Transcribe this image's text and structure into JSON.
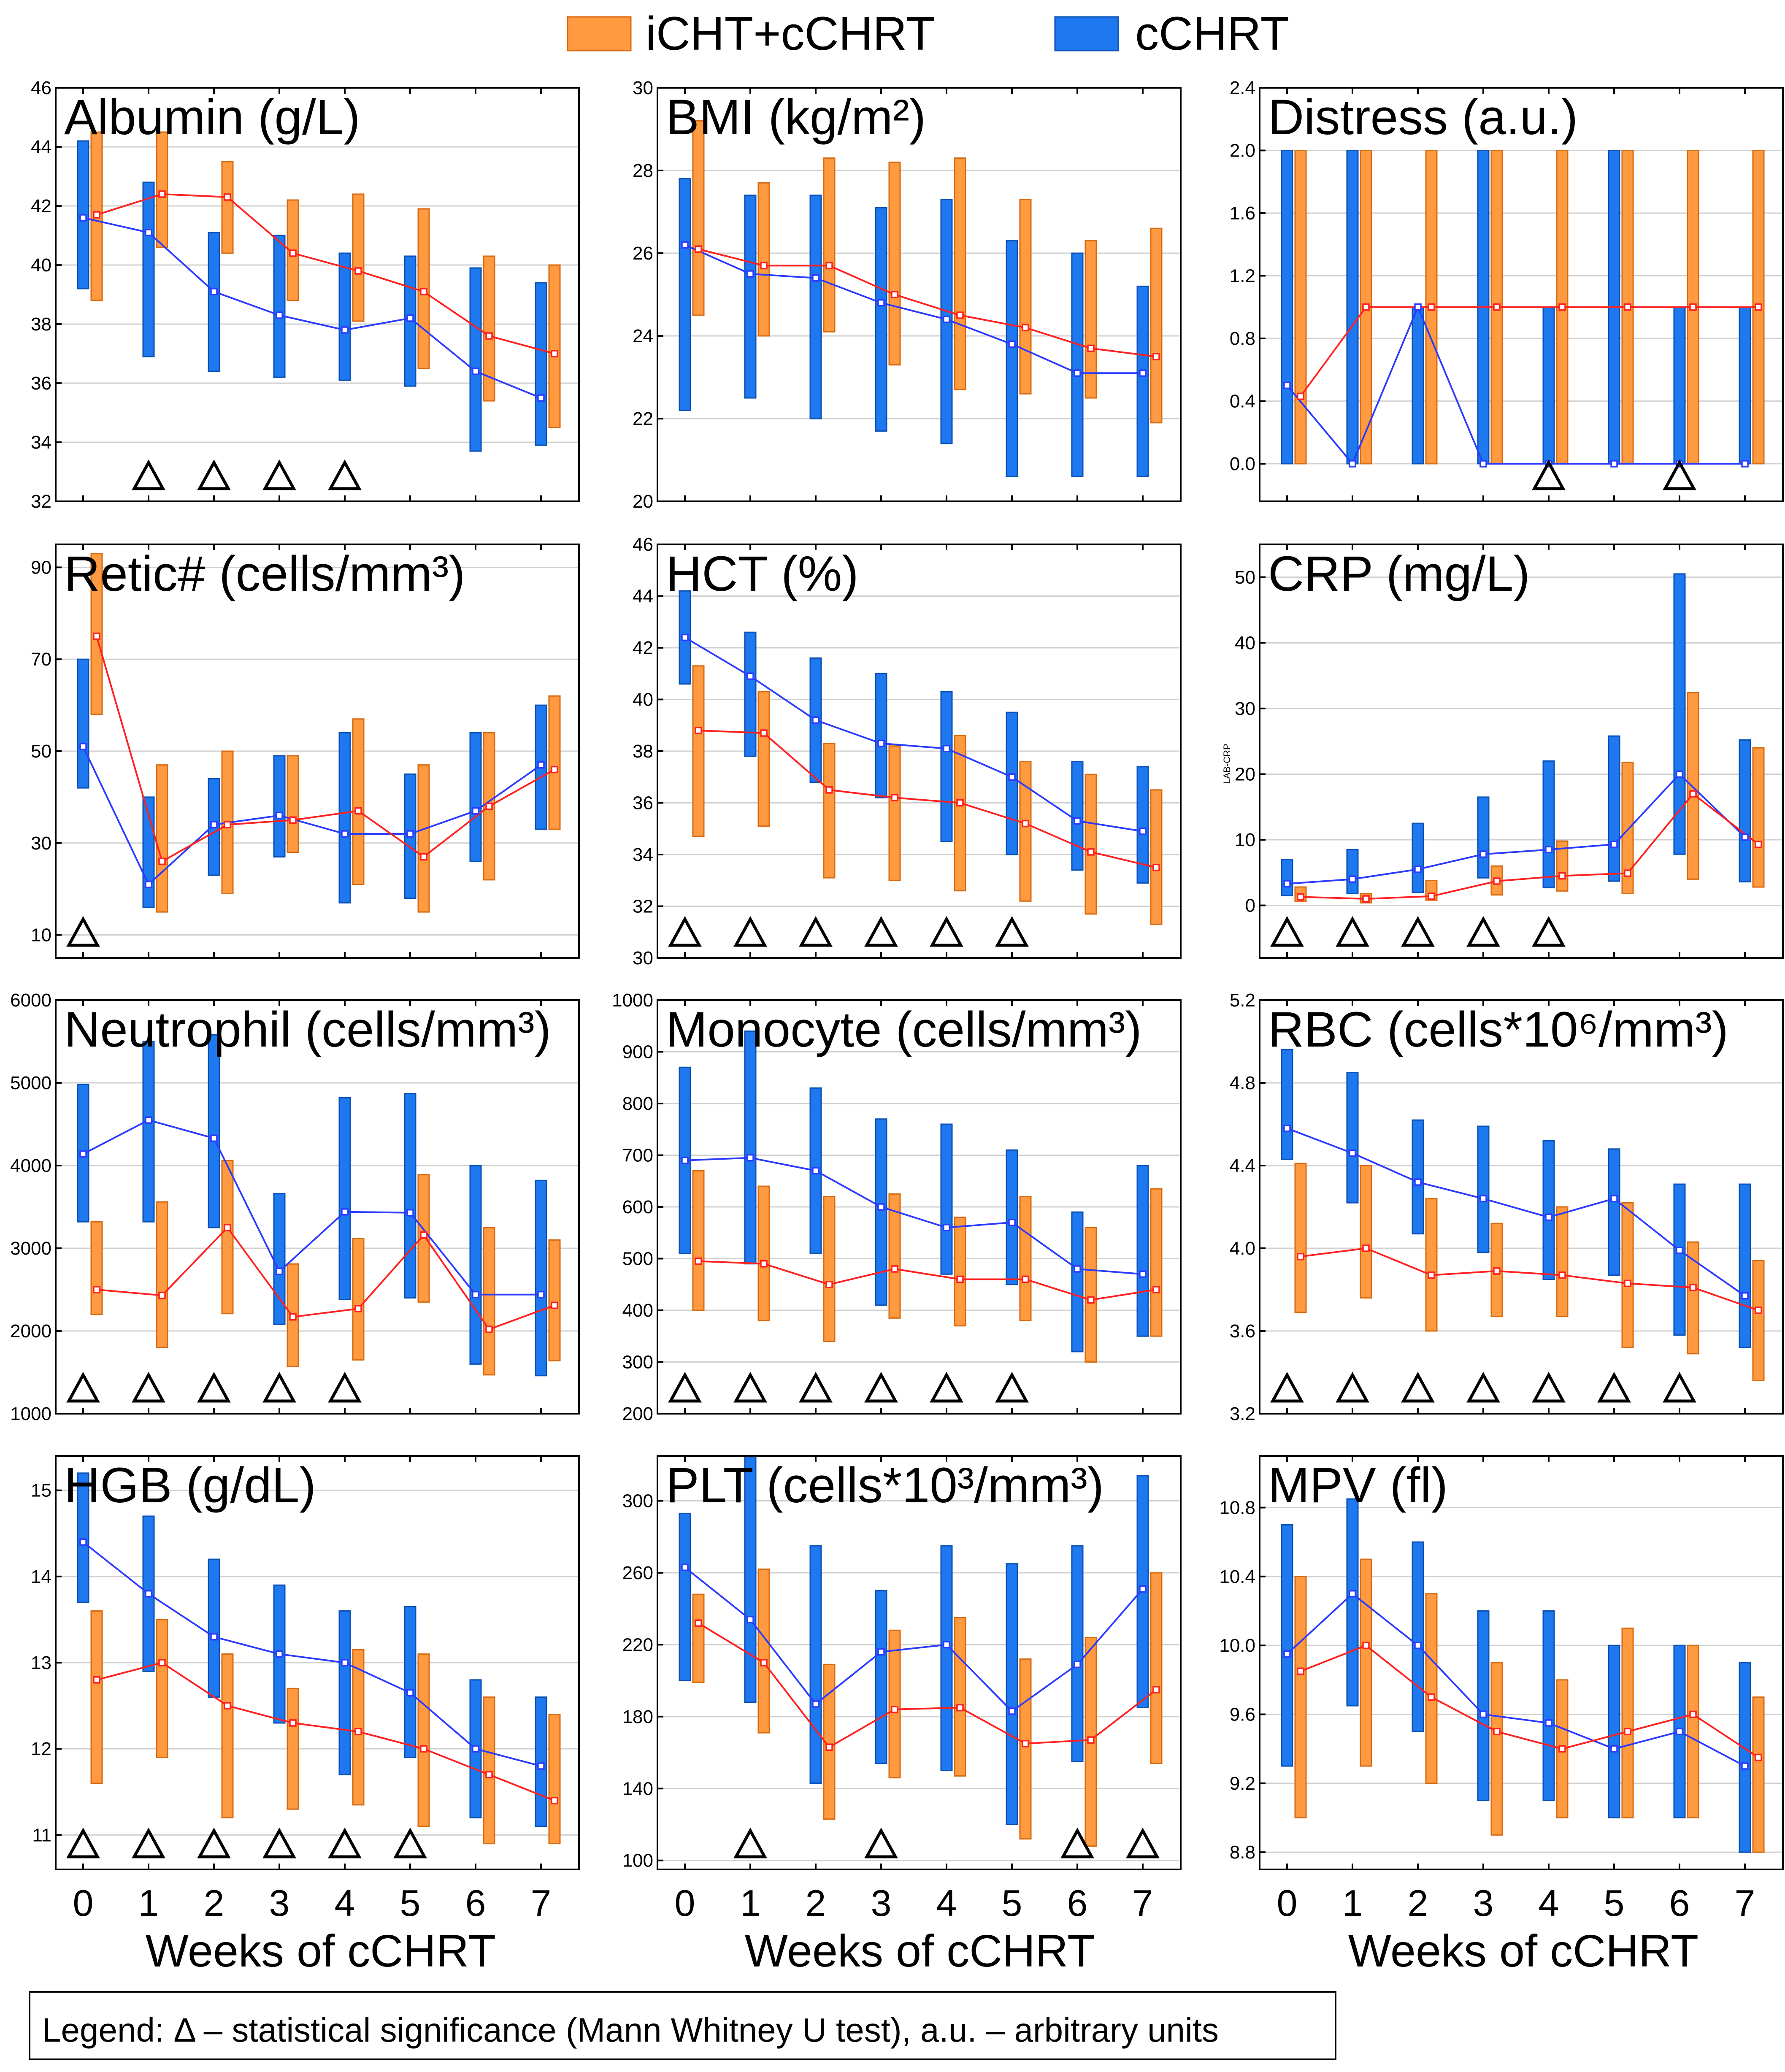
{
  "legend": {
    "series": [
      {
        "name": "iCHT+cCHRT",
        "color": "#ff9a40"
      },
      {
        "name": "cCHRT",
        "color": "#1e78f0"
      }
    ],
    "note": "Legend: Δ – statistical significance (Mann Whitney U test), a.u. – arbitrary units"
  },
  "x_axis_label": "Weeks of cCHRT",
  "colors": {
    "blue_bar": "#1e78f0",
    "orange_bar": "#ff9a40",
    "blue_line": "#2b3bff",
    "red_line": "#ff2020"
  },
  "chart_data": [
    {
      "type": "bar",
      "title": "Albumin (g/L)",
      "ylim": [
        32,
        46
      ],
      "yticks": [
        "32",
        "34",
        "36",
        "38",
        "40",
        "42",
        "44",
        "46"
      ],
      "xticks": [
        "0",
        "1",
        "2",
        "3",
        "4",
        "5",
        "6",
        "7"
      ],
      "series": [
        {
          "name": "cCHRT",
          "lo": [
            39.2,
            36.9,
            36.4,
            36.2,
            36.1,
            35.9,
            33.7,
            33.9
          ],
          "hi": [
            44.2,
            42.8,
            41.1,
            41.0,
            40.4,
            40.3,
            39.9,
            39.4
          ],
          "mean": [
            41.6,
            41.1,
            39.1,
            38.3,
            37.8,
            38.2,
            36.4,
            35.5
          ]
        },
        {
          "name": "iCHT+cCHRT",
          "lo": [
            38.8,
            40.6,
            40.4,
            38.8,
            38.1,
            36.5,
            35.4,
            34.5
          ],
          "hi": [
            44.5,
            44.5,
            43.5,
            42.2,
            42.4,
            41.9,
            40.3,
            40.0
          ],
          "mean": [
            41.7,
            42.4,
            42.3,
            40.4,
            39.8,
            39.1,
            37.6,
            37.0
          ]
        }
      ],
      "significance": [
        "1",
        "2",
        "3",
        "4"
      ]
    },
    {
      "type": "bar",
      "title": "BMI (kg/m²)",
      "ylim": [
        20,
        30
      ],
      "yticks": [
        "20",
        "22",
        "24",
        "26",
        "28",
        "30"
      ],
      "xticks": [
        "0",
        "1",
        "2",
        "3",
        "4",
        "5",
        "6",
        "7"
      ],
      "series": [
        {
          "name": "cCHRT",
          "lo": [
            22.2,
            22.5,
            22.0,
            21.7,
            21.4,
            20.6,
            20.6,
            20.6
          ],
          "hi": [
            27.8,
            27.4,
            27.4,
            27.1,
            27.3,
            26.3,
            26.0,
            25.2
          ],
          "mean": [
            26.2,
            25.5,
            25.4,
            24.8,
            24.4,
            23.8,
            23.1,
            23.1
          ]
        },
        {
          "name": "iCHT+cCHRT",
          "lo": [
            24.5,
            24.0,
            24.1,
            23.3,
            22.7,
            22.6,
            22.5,
            21.9
          ],
          "hi": [
            29.2,
            27.7,
            28.3,
            28.2,
            28.3,
            27.3,
            26.3,
            26.6
          ],
          "mean": [
            26.1,
            25.7,
            25.7,
            25.0,
            24.5,
            24.2,
            23.7,
            23.5
          ]
        }
      ],
      "significance": []
    },
    {
      "type": "bar",
      "title": "Distress (a.u.)",
      "ylim": [
        -0.24,
        2.4
      ],
      "yticks": [
        "0.0",
        "0.4",
        "0.8",
        "1.2",
        "1.6",
        "2.0",
        "2.4"
      ],
      "xticks": [
        "0",
        "1",
        "2",
        "3",
        "4",
        "5",
        "6",
        "7"
      ],
      "series": [
        {
          "name": "cCHRT",
          "lo": [
            0,
            0,
            0,
            0,
            0,
            0,
            0,
            0
          ],
          "hi": [
            2,
            2,
            1,
            2,
            1,
            2,
            1,
            1
          ],
          "mean": [
            0.5,
            0,
            1,
            0,
            0,
            0,
            0,
            0
          ]
        },
        {
          "name": "iCHT+cCHRT",
          "lo": [
            0,
            0,
            0,
            0,
            0,
            0,
            0,
            0
          ],
          "hi": [
            2,
            2,
            2,
            2,
            2,
            2,
            2,
            2
          ],
          "mean": [
            0.43,
            1,
            1,
            1,
            1,
            1,
            1,
            1
          ]
        }
      ],
      "significance": [
        "4",
        "6"
      ]
    },
    {
      "type": "bar",
      "title": "Retic# (cells/mm³)",
      "ylim": [
        5,
        95
      ],
      "yticks": [
        "10",
        "30",
        "50",
        "70",
        "90"
      ],
      "xticks": [
        "0",
        "1",
        "2",
        "3",
        "4",
        "5",
        "6",
        "7"
      ],
      "series": [
        {
          "name": "cCHRT",
          "lo": [
            42,
            16,
            23,
            27,
            17,
            18,
            26,
            33
          ],
          "hi": [
            70,
            40,
            44,
            49,
            54,
            45,
            54,
            60
          ],
          "mean": [
            51,
            21,
            34,
            36,
            32,
            32,
            37,
            47
          ]
        },
        {
          "name": "iCHT+cCHRT",
          "lo": [
            58,
            15,
            19,
            28,
            21,
            15,
            22,
            33
          ],
          "hi": [
            93,
            47,
            50,
            49,
            57,
            47,
            54,
            62
          ],
          "mean": [
            75,
            26,
            34,
            35,
            37,
            27,
            38,
            46
          ]
        }
      ],
      "significance": [
        "0"
      ]
    },
    {
      "type": "bar",
      "title": "HCT (%)",
      "ylim": [
        30,
        46
      ],
      "yticks": [
        "30",
        "32",
        "34",
        "36",
        "38",
        "40",
        "42",
        "44",
        "46"
      ],
      "xticks": [
        "0",
        "1",
        "2",
        "3",
        "4",
        "5",
        "6",
        "7"
      ],
      "series": [
        {
          "name": "cCHRT",
          "lo": [
            40.6,
            37.8,
            36.8,
            36.2,
            34.5,
            34.0,
            33.4,
            32.9
          ],
          "hi": [
            44.2,
            42.6,
            41.6,
            41.0,
            40.3,
            39.5,
            37.6,
            37.4
          ],
          "mean": [
            42.4,
            40.9,
            39.2,
            38.3,
            38.1,
            37.0,
            35.3,
            34.9
          ]
        },
        {
          "name": "iCHT+cCHRT",
          "lo": [
            34.7,
            35.1,
            33.1,
            33.0,
            32.6,
            32.2,
            31.7,
            31.3
          ],
          "hi": [
            41.3,
            40.3,
            38.3,
            38.2,
            38.6,
            37.6,
            37.1,
            36.5
          ],
          "mean": [
            38.8,
            38.7,
            36.5,
            36.2,
            36.0,
            35.2,
            34.1,
            33.5
          ]
        }
      ],
      "significance": [
        "0",
        "1",
        "2",
        "3",
        "4",
        "5"
      ]
    },
    {
      "type": "bar",
      "title": "CRP (mg/L)",
      "ylim": [
        -8,
        55
      ],
      "yticks": [
        "0",
        "10",
        "20",
        "30",
        "40",
        "50"
      ],
      "ylabel": "LAB-CRP",
      "xticks": [
        "0",
        "1",
        "2",
        "3",
        "4",
        "5",
        "6",
        "7"
      ],
      "series": [
        {
          "name": "cCHRT",
          "lo": [
            1.5,
            1.8,
            2.0,
            4.2,
            2.7,
            3.7,
            7.8,
            3.6
          ],
          "hi": [
            7.0,
            8.5,
            12.5,
            16.5,
            22.0,
            25.8,
            50.5,
            25.2
          ],
          "mean": [
            3.3,
            4.0,
            5.5,
            7.8,
            8.5,
            9.3,
            20.0,
            10.4
          ]
        },
        {
          "name": "iCHT+cCHRT",
          "lo": [
            0.6,
            0.4,
            0.8,
            1.6,
            2.2,
            1.8,
            4.0,
            2.8
          ],
          "hi": [
            2.8,
            1.8,
            3.8,
            6.0,
            9.8,
            21.8,
            32.4,
            24.0
          ],
          "mean": [
            1.3,
            1.0,
            1.4,
            3.7,
            4.5,
            4.9,
            17.0,
            9.3
          ]
        }
      ],
      "significance": [
        "0",
        "1",
        "2",
        "3",
        "4"
      ]
    },
    {
      "type": "bar",
      "title": "Neutrophil (cells/mm³)",
      "ylim": [
        1000,
        6000
      ],
      "yticks": [
        "1000",
        "2000",
        "3000",
        "4000",
        "5000",
        "6000"
      ],
      "xticks": [
        "0",
        "1",
        "2",
        "3",
        "4",
        "5",
        "6",
        "7"
      ],
      "series": [
        {
          "name": "cCHRT",
          "lo": [
            3320,
            3320,
            3250,
            2080,
            2380,
            2400,
            1600,
            1460
          ],
          "hi": [
            4980,
            5500,
            5580,
            3660,
            4820,
            4870,
            4000,
            3820
          ],
          "mean": [
            4140,
            4550,
            4330,
            2720,
            3440,
            3430,
            2440,
            2440
          ]
        },
        {
          "name": "iCHT+cCHRT",
          "lo": [
            2200,
            1800,
            2210,
            1570,
            1650,
            2350,
            1470,
            1640
          ],
          "hi": [
            3320,
            3560,
            4060,
            2810,
            3120,
            3890,
            3250,
            3100
          ],
          "mean": [
            2500,
            2430,
            3250,
            2170,
            2270,
            3160,
            2020,
            2310
          ]
        }
      ],
      "significance": [
        "0",
        "1",
        "2",
        "3",
        "4"
      ]
    },
    {
      "type": "bar",
      "title": "Monocyte (cells/mm³)",
      "ylim": [
        200,
        1000
      ],
      "yticks": [
        "200",
        "300",
        "400",
        "500",
        "600",
        "700",
        "800",
        "900",
        "1000"
      ],
      "xticks": [
        "0",
        "1",
        "2",
        "3",
        "4",
        "5",
        "6",
        "7"
      ],
      "series": [
        {
          "name": "cCHRT",
          "lo": [
            510,
            490,
            510,
            410,
            470,
            450,
            320,
            350
          ],
          "hi": [
            870,
            940,
            830,
            770,
            760,
            710,
            590,
            680
          ],
          "mean": [
            690,
            695,
            670,
            600,
            560,
            570,
            480,
            470
          ]
        },
        {
          "name": "iCHT+cCHRT",
          "lo": [
            400,
            380,
            340,
            385,
            370,
            380,
            300,
            350
          ],
          "hi": [
            670,
            640,
            620,
            625,
            580,
            620,
            560,
            635
          ],
          "mean": [
            495,
            490,
            450,
            480,
            460,
            460,
            420,
            440
          ]
        }
      ],
      "significance": [
        "0",
        "1",
        "2",
        "3",
        "4",
        "5"
      ]
    },
    {
      "type": "bar",
      "title": "RBC (cells*10⁶/mm³)",
      "ylim": [
        3.2,
        5.2
      ],
      "yticks": [
        "3.2",
        "3.6",
        "4.0",
        "4.4",
        "4.8",
        "5.2"
      ],
      "xticks": [
        "0",
        "1",
        "2",
        "3",
        "4",
        "5",
        "6",
        "7"
      ],
      "series": [
        {
          "name": "cCHRT",
          "lo": [
            4.43,
            4.22,
            4.07,
            3.98,
            3.85,
            3.87,
            3.58,
            3.52
          ],
          "hi": [
            4.96,
            4.85,
            4.62,
            4.59,
            4.52,
            4.48,
            4.31,
            4.31
          ],
          "mean": [
            4.58,
            4.46,
            4.32,
            4.24,
            4.15,
            4.24,
            3.99,
            3.77
          ]
        },
        {
          "name": "iCHT+cCHRT",
          "lo": [
            3.69,
            3.76,
            3.6,
            3.67,
            3.67,
            3.52,
            3.49,
            3.36
          ],
          "hi": [
            4.41,
            4.4,
            4.24,
            4.12,
            4.2,
            4.22,
            4.03,
            3.94
          ],
          "mean": [
            3.96,
            4.0,
            3.87,
            3.89,
            3.87,
            3.83,
            3.81,
            3.7
          ]
        }
      ],
      "significance": [
        "0",
        "1",
        "2",
        "3",
        "4",
        "5",
        "6"
      ]
    },
    {
      "type": "bar",
      "title": "HGB (g/dL)",
      "ylim": [
        10.6,
        15.4
      ],
      "yticks": [
        "11",
        "12",
        "13",
        "14",
        "15"
      ],
      "xticks": [
        "0",
        "1",
        "2",
        "3",
        "4",
        "5",
        "6",
        "7"
      ],
      "series": [
        {
          "name": "cCHRT",
          "lo": [
            13.7,
            12.9,
            12.6,
            12.3,
            11.7,
            11.9,
            11.2,
            11.1
          ],
          "hi": [
            15.2,
            14.7,
            14.2,
            13.9,
            13.6,
            13.65,
            12.8,
            12.6
          ],
          "mean": [
            14.4,
            13.8,
            13.3,
            13.1,
            13.0,
            12.65,
            12.0,
            11.8
          ]
        },
        {
          "name": "iCHT+cCHRT",
          "lo": [
            11.6,
            11.9,
            11.2,
            11.3,
            11.35,
            11.1,
            10.9,
            10.9
          ],
          "hi": [
            13.6,
            13.5,
            13.1,
            12.7,
            13.15,
            13.1,
            12.6,
            12.4
          ],
          "mean": [
            12.8,
            13.0,
            12.5,
            12.3,
            12.2,
            12.0,
            11.7,
            11.4
          ]
        }
      ],
      "significance": [
        "0",
        "1",
        "2",
        "3",
        "4",
        "5"
      ]
    },
    {
      "type": "bar",
      "title": "PLT (cells*10³/mm³)",
      "ylim": [
        95,
        325
      ],
      "yticks": [
        "100",
        "140",
        "180",
        "220",
        "260",
        "300"
      ],
      "xticks": [
        "0",
        "1",
        "2",
        "3",
        "4",
        "5",
        "6",
        "7"
      ],
      "series": [
        {
          "name": "cCHRT",
          "lo": [
            200,
            188,
            143,
            154,
            150,
            120,
            155,
            185
          ],
          "hi": [
            293,
            325,
            275,
            250,
            275,
            265,
            275,
            314
          ],
          "mean": [
            263,
            234,
            187,
            216,
            220,
            183,
            209,
            251
          ]
        },
        {
          "name": "iCHT+cCHRT",
          "lo": [
            199,
            171,
            123,
            146,
            147,
            112,
            108,
            154
          ],
          "hi": [
            248,
            262,
            209,
            228,
            235,
            212,
            224,
            260
          ],
          "mean": [
            232,
            210,
            163,
            184,
            185,
            165,
            167,
            195
          ]
        }
      ],
      "significance": [
        "1",
        "3",
        "6",
        "7"
      ]
    },
    {
      "type": "bar",
      "title": "MPV (fl)",
      "ylim": [
        8.7,
        11.1
      ],
      "yticks": [
        "8.8",
        "9.2",
        "9.6",
        "10.0",
        "10.4",
        "10.8"
      ],
      "xticks": [
        "0",
        "1",
        "2",
        "3",
        "4",
        "5",
        "6",
        "7"
      ],
      "series": [
        {
          "name": "cCHRT",
          "lo": [
            9.3,
            9.65,
            9.5,
            9.1,
            9.1,
            9.0,
            9.0,
            8.8
          ],
          "hi": [
            10.7,
            10.85,
            10.6,
            10.2,
            10.2,
            10.0,
            10.0,
            9.9
          ],
          "mean": [
            9.95,
            10.3,
            10.0,
            9.6,
            9.55,
            9.4,
            9.5,
            9.3
          ]
        },
        {
          "name": "iCHT+cCHRT",
          "lo": [
            9.0,
            9.3,
            9.2,
            8.9,
            9.0,
            9.0,
            9.0,
            8.8
          ],
          "hi": [
            10.4,
            10.5,
            10.3,
            9.9,
            9.8,
            10.1,
            10.0,
            9.7
          ],
          "mean": [
            9.85,
            10.0,
            9.7,
            9.5,
            9.4,
            9.5,
            9.6,
            9.35
          ]
        }
      ],
      "significance": []
    }
  ]
}
